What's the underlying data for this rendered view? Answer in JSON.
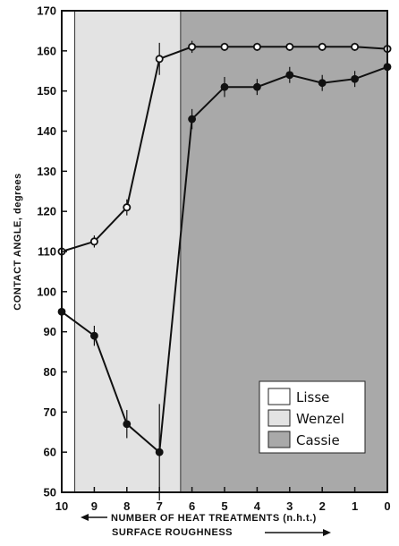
{
  "chart_data": {
    "type": "line",
    "title": "",
    "ylabel": "CONTACT ANGLE, degrees",
    "xlabel": "NUMBER OF HEAT TREATMENTS (n.h.t.)",
    "xlabel2": "SURFACE ROUGHNESS",
    "ylim": [
      50,
      170
    ],
    "yticks": [
      50,
      60,
      70,
      80,
      90,
      100,
      110,
      120,
      130,
      140,
      150,
      160,
      170
    ],
    "x": [
      10,
      9,
      8,
      7,
      6,
      5,
      4,
      3,
      2,
      1,
      0
    ],
    "xlim": [
      10,
      0
    ],
    "regions": [
      {
        "name": "Lisse",
        "x_from": 10.0,
        "x_to": 9.6,
        "color": "#ffffff"
      },
      {
        "name": "Wenzel",
        "x_from": 9.6,
        "x_to": 6.35,
        "color": "#e3e3e3"
      },
      {
        "name": "Cassie",
        "x_from": 6.35,
        "x_to": 0,
        "color": "#a9a9a9"
      }
    ],
    "series": [
      {
        "marker": "open",
        "x": [
          10,
          9,
          8,
          7,
          6,
          5,
          4,
          3,
          2,
          1,
          0
        ],
        "values": [
          110,
          112.5,
          121,
          158,
          161,
          161,
          161,
          161,
          161,
          161,
          160.5
        ],
        "err": [
          0,
          1.5,
          2,
          4,
          1.5,
          1,
          1,
          1,
          1,
          1,
          1
        ]
      },
      {
        "marker": "filled",
        "x": [
          10,
          9,
          8,
          7,
          6,
          5,
          4,
          3,
          2,
          1,
          0
        ],
        "values": [
          95,
          89,
          67,
          60,
          143,
          151,
          151,
          154,
          152,
          153,
          156
        ],
        "err": [
          0,
          2.5,
          3.5,
          12,
          2.5,
          2.5,
          2,
          2,
          2,
          2,
          2
        ]
      }
    ],
    "legend": {
      "placement": "bottom-right",
      "entries": [
        "Lisse",
        "Wenzel",
        "Cassie"
      ]
    },
    "grid": false
  }
}
